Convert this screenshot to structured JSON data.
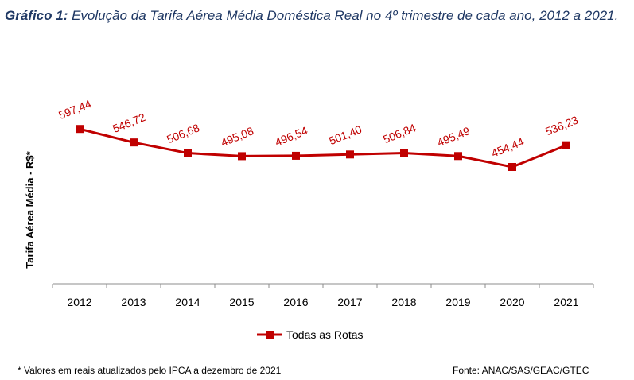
{
  "caption": {
    "label": "Gráfico 1:",
    "text": " Evolução da Tarifa Aérea Média Doméstica Real no 4º trimestre de cada ano, 2012 a 2021."
  },
  "chart_data": {
    "type": "line",
    "ylabel": "Tarifa Aérea Média - R$*",
    "categories": [
      "2012",
      "2013",
      "2014",
      "2015",
      "2016",
      "2017",
      "2018",
      "2019",
      "2020",
      "2021"
    ],
    "series": [
      {
        "name": "Todas as Rotas",
        "values": [
          597.44,
          546.72,
          506.68,
          495.08,
          496.54,
          501.4,
          506.84,
          495.49,
          454.44,
          536.23
        ],
        "labels": [
          "597,44",
          "546,72",
          "506,68",
          "495,08",
          "496,54",
          "501,40",
          "506,84",
          "495,49",
          "454,44",
          "536,23"
        ],
        "color": "#c00000"
      }
    ],
    "legend_position": "bottom",
    "grid": false
  },
  "footnote": "* Valores em reais atualizados pelo IPCA a dezembro de 2021",
  "source": "Fonte: ANAC/SAS/GEAC/GTEC"
}
